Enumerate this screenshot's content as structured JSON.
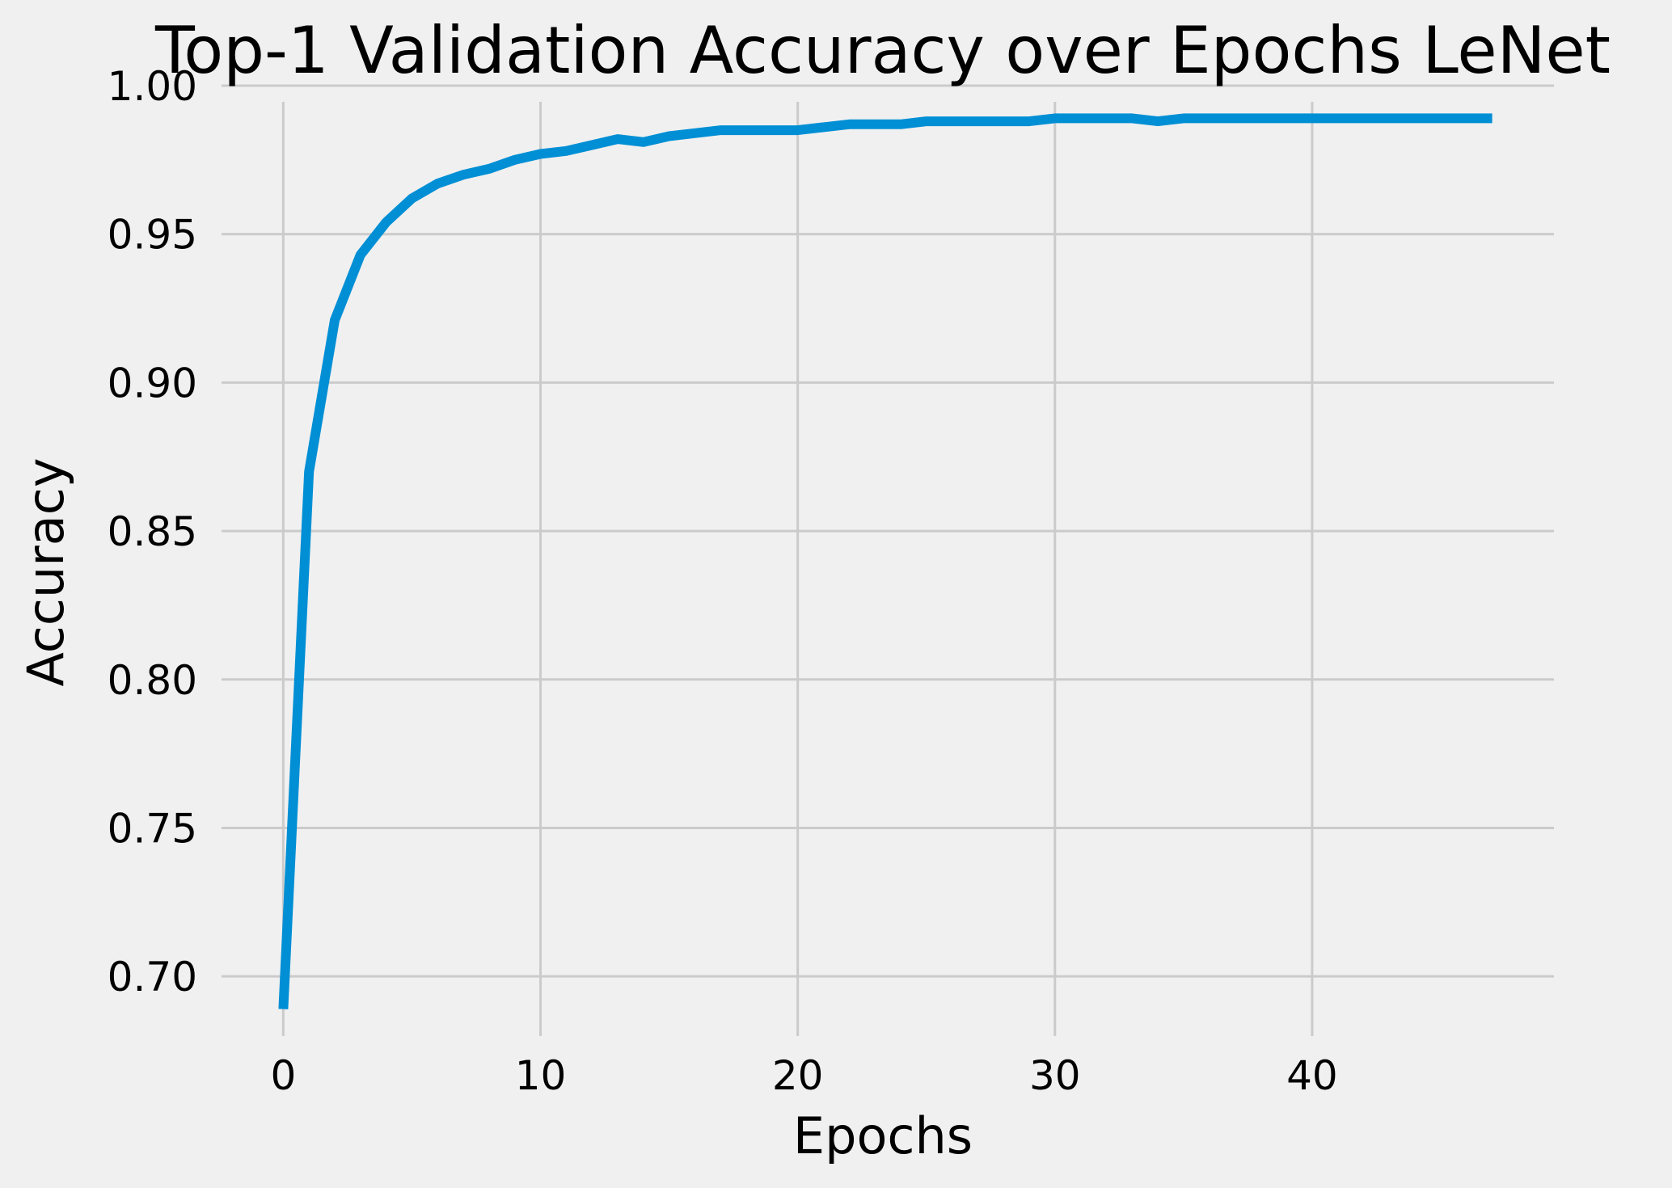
{
  "chart_data": {
    "type": "line",
    "title": "Top-1 Validation Accuracy over Epochs LeNet",
    "xlabel": "Epochs",
    "ylabel": "Accuracy",
    "xlim": [
      -2.4,
      49.4
    ],
    "ylim": [
      0.675,
      1.0
    ],
    "xticks": [
      0,
      10,
      20,
      30,
      40
    ],
    "yticks": [
      0.7,
      0.75,
      0.8,
      0.85,
      0.9,
      0.95,
      1.0
    ],
    "grid": true,
    "colors": {
      "background": "#f0f0f0",
      "grid": "#cbcbcb",
      "series": "#008fd5"
    },
    "series": [
      {
        "color": "#008fd5",
        "x": [
          0,
          1,
          2,
          3,
          4,
          5,
          6,
          7,
          8,
          9,
          10,
          11,
          12,
          13,
          14,
          15,
          16,
          17,
          18,
          19,
          20,
          21,
          22,
          23,
          24,
          25,
          26,
          27,
          28,
          29,
          30,
          31,
          32,
          33,
          34,
          35,
          36,
          37,
          38,
          39,
          40,
          41,
          42,
          43,
          44,
          45,
          46,
          47
        ],
        "y": [
          0.689,
          0.87,
          0.921,
          0.943,
          0.954,
          0.962,
          0.967,
          0.97,
          0.972,
          0.975,
          0.977,
          0.978,
          0.98,
          0.982,
          0.981,
          0.983,
          0.984,
          0.985,
          0.985,
          0.985,
          0.985,
          0.986,
          0.987,
          0.987,
          0.987,
          0.988,
          0.988,
          0.988,
          0.988,
          0.988,
          0.989,
          0.989,
          0.989,
          0.989,
          0.988,
          0.989,
          0.989,
          0.989,
          0.989,
          0.989,
          0.989,
          0.989,
          0.989,
          0.989,
          0.989,
          0.989,
          0.989,
          0.989
        ]
      }
    ]
  }
}
